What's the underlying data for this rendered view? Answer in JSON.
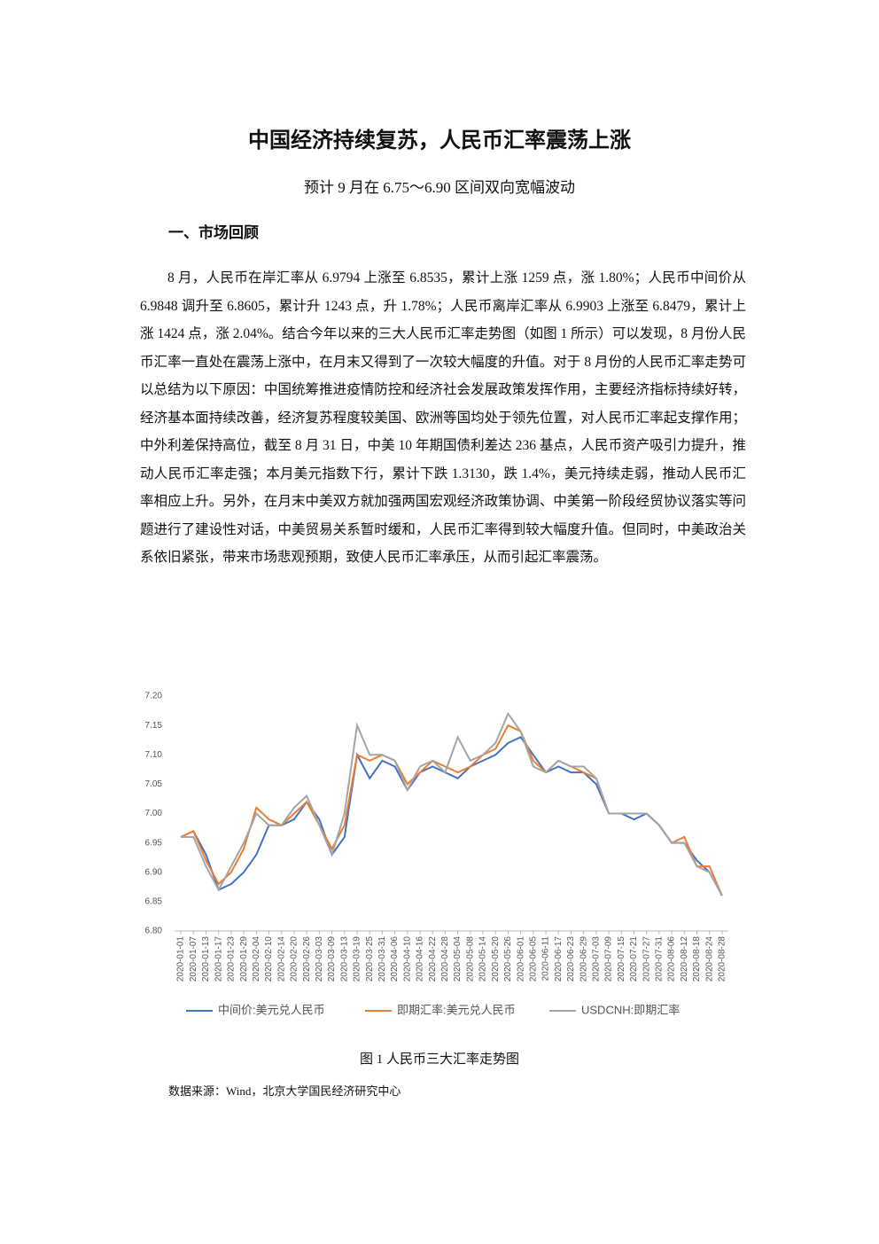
{
  "header": {
    "title": "中国经济持续复苏，人民币汇率震荡上涨",
    "subtitle": "预计 9 月在 6.75～6.90 区间双向宽幅波动"
  },
  "section": {
    "heading": "一、市场回顾",
    "paragraph": "8 月，人民币在岸汇率从 6.9794 上涨至 6.8535，累计上涨 1259 点，涨 1.80%；人民币中间价从 6.9848 调升至 6.8605，累计升 1243 点，升 1.78%；人民币离岸汇率从 6.9903 上涨至 6.8479，累计上涨 1424 点，涨 2.04%。结合今年以来的三大人民币汇率走势图（如图 1 所示）可以发现，8 月份人民币汇率一直处在震荡上涨中，在月末又得到了一次较大幅度的升值。对于 8 月份的人民币汇率走势可以总结为以下原因：中国统筹推进疫情防控和经济社会发展政策发挥作用，主要经济指标持续好转，经济基本面持续改善，经济复苏程度较美国、欧洲等国均处于领先位置，对人民币汇率起支撑作用；中外利差保持高位，截至 8 月 31 日，中美 10 年期国债利差达 236 基点，人民币资产吸引力提升，推动人民币汇率走强；本月美元指数下行，累计下跌 1.3130，跌 1.4%，美元持续走弱，推动人民币汇率相应上升。另外，在月末中美双方就加强两国宏观经济政策协调、中美第一阶段经贸协议落实等问题进行了建设性对话，中美贸易关系暂时缓和，人民币汇率得到较大幅度升值。但同时，中美政治关系依旧紧张，带来市场悲观预期，致使人民币汇率承压，从而引起汇率震荡。"
  },
  "figure": {
    "caption": "图 1  人民币三大汇率走势图",
    "source": "数据来源：Wind，北京大学国民经济研究中心"
  },
  "chart_data": {
    "type": "line",
    "categories": [
      "2020-01-01",
      "2020-01-07",
      "2020-01-13",
      "2020-01-17",
      "2020-01-23",
      "2020-01-29",
      "2020-02-04",
      "2020-02-10",
      "2020-02-14",
      "2020-02-20",
      "2020-02-26",
      "2020-03-03",
      "2020-03-09",
      "2020-03-13",
      "2020-03-19",
      "2020-03-25",
      "2020-03-31",
      "2020-04-06",
      "2020-04-10",
      "2020-04-16",
      "2020-04-22",
      "2020-04-28",
      "2020-05-04",
      "2020-05-08",
      "2020-05-14",
      "2020-05-20",
      "2020-05-26",
      "2020-06-01",
      "2020-06-05",
      "2020-06-11",
      "2020-06-17",
      "2020-06-23",
      "2020-06-29",
      "2020-07-03",
      "2020-07-09",
      "2020-07-15",
      "2020-07-21",
      "2020-07-27",
      "2020-07-31",
      "2020-08-06",
      "2020-08-12",
      "2020-08-18",
      "2020-08-24",
      "2020-08-28"
    ],
    "series": [
      {
        "name": "中间价:美元兑人民币",
        "color": "#4472c4",
        "values": [
          6.96,
          6.97,
          6.93,
          6.87,
          6.88,
          6.9,
          6.93,
          6.98,
          6.98,
          6.99,
          7.02,
          6.99,
          6.93,
          6.96,
          7.1,
          7.06,
          7.09,
          7.08,
          7.04,
          7.07,
          7.08,
          7.07,
          7.06,
          7.08,
          7.09,
          7.1,
          7.12,
          7.13,
          7.1,
          7.07,
          7.08,
          7.07,
          7.07,
          7.05,
          7.0,
          7.0,
          6.99,
          7.0,
          6.98,
          6.95,
          6.95,
          6.92,
          6.9,
          6.86
        ]
      },
      {
        "name": "即期汇率:美元兑人民币",
        "color": "#ed7d31",
        "values": [
          6.96,
          6.97,
          6.92,
          6.88,
          6.9,
          6.94,
          7.01,
          6.99,
          6.98,
          7.0,
          7.02,
          6.98,
          6.94,
          6.98,
          7.1,
          7.09,
          7.1,
          7.09,
          7.05,
          7.07,
          7.09,
          7.08,
          7.07,
          7.08,
          7.1,
          7.11,
          7.15,
          7.14,
          7.09,
          7.07,
          7.09,
          7.08,
          7.07,
          7.06,
          7.0,
          7.0,
          7.0,
          7.0,
          6.98,
          6.95,
          6.96,
          6.91,
          6.91,
          6.86
        ]
      },
      {
        "name": "USDCNH:即期汇率",
        "color": "#a5a5a5",
        "values": [
          6.96,
          6.96,
          6.91,
          6.87,
          6.91,
          6.95,
          7.0,
          6.98,
          6.98,
          7.01,
          7.03,
          6.98,
          6.93,
          7.0,
          7.15,
          7.1,
          7.1,
          7.09,
          7.04,
          7.08,
          7.09,
          7.07,
          7.13,
          7.09,
          7.1,
          7.12,
          7.17,
          7.14,
          7.08,
          7.07,
          7.09,
          7.08,
          7.08,
          7.06,
          7.0,
          7.0,
          7.0,
          7.0,
          6.98,
          6.95,
          6.95,
          6.91,
          6.9,
          6.86
        ]
      }
    ],
    "ylim": [
      6.8,
      7.2
    ],
    "yticks": [
      {
        "value": 6.8,
        "label": "6.80"
      },
      6.85,
      {
        "value": 6.9,
        "label": "6.90"
      },
      6.95,
      {
        "value": 7,
        "label": "7.00"
      },
      7.05,
      {
        "value": 7.1,
        "label": "7.10"
      },
      7.15,
      {
        "value": 7.2,
        "label": "7.20"
      }
    ],
    "grid": false,
    "legend": "bottom"
  }
}
